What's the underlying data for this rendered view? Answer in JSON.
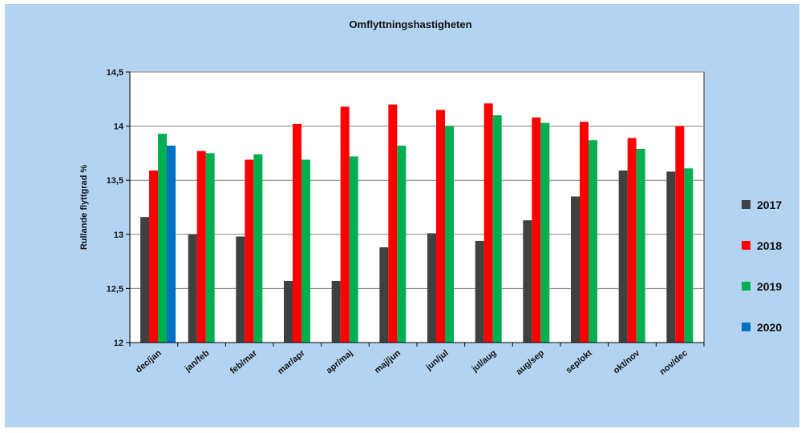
{
  "chart_data": {
    "type": "bar",
    "title": "Omflyttningshastigheten",
    "ylabel": "Rullande flyttgrad %",
    "xlabel": "",
    "ylim": [
      12,
      14.5
    ],
    "yticks": [
      "12",
      "12,5",
      "13",
      "13,5",
      "14",
      "14,5"
    ],
    "ytick_values": [
      12,
      12.5,
      13,
      13.5,
      14,
      14.5
    ],
    "grid": true,
    "legend_position": "right",
    "categories": [
      "dec/jan",
      "jan/feb",
      "feb/mar",
      "mar/apr",
      "apr/maj",
      "maj/jun",
      "jun/jul",
      "jul/aug",
      "aug/sep",
      "sep/okt",
      "okt/nov",
      "nov/dec"
    ],
    "series": [
      {
        "name": "2017",
        "color": "#404040",
        "values": [
          13.16,
          13.0,
          12.98,
          12.57,
          12.57,
          12.88,
          13.01,
          12.94,
          13.13,
          13.35,
          13.59,
          13.58
        ]
      },
      {
        "name": "2018",
        "color": "#ff0000",
        "values": [
          13.59,
          13.77,
          13.69,
          14.02,
          14.18,
          14.2,
          14.15,
          14.21,
          14.08,
          14.04,
          13.89,
          14.0
        ]
      },
      {
        "name": "2019",
        "color": "#00b050",
        "values": [
          13.93,
          13.75,
          13.74,
          13.69,
          13.72,
          13.82,
          14.0,
          14.1,
          14.03,
          13.87,
          13.79,
          13.61
        ]
      },
      {
        "name": "2020",
        "color": "#0070c0",
        "values": [
          13.82,
          null,
          null,
          null,
          null,
          null,
          null,
          null,
          null,
          null,
          null,
          null
        ]
      }
    ]
  }
}
